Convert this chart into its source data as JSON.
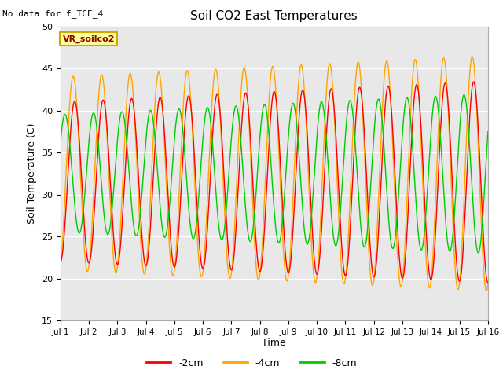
{
  "title": "Soil CO2 East Temperatures",
  "no_data_text": "No data for f_TCE_4",
  "legend_box_text": "VR_soilco2",
  "ylabel": "Soil Temperature (C)",
  "xlabel": "Time",
  "ylim": [
    15,
    50
  ],
  "xlim": [
    0,
    15
  ],
  "yticks": [
    15,
    20,
    25,
    30,
    35,
    40,
    45,
    50
  ],
  "xtick_labels": [
    "Jul 1",
    "Jul 2",
    "Jul 3",
    "Jul 4",
    "Jul 5",
    "Jul 6",
    "Jul 7",
    "Jul 8",
    "Jul 9",
    "Jul 10",
    "Jul 11",
    "Jul 12",
    "Jul 13",
    "Jul 14",
    "Jul 15",
    "Jul 16"
  ],
  "color_2cm": "#ff0000",
  "color_4cm": "#ffa500",
  "color_8cm": "#00cc00",
  "plot_bg_color": "#e8e8e8",
  "label_2cm": "-2cm",
  "label_4cm": "-4cm",
  "label_8cm": "-8cm",
  "n_days": 15,
  "samples_per_day": 96,
  "amp_2cm_start": 9.5,
  "amp_2cm_end": 12.0,
  "amp_4cm_start": 11.5,
  "amp_4cm_end": 14.0,
  "amp_8cm_start": 7.0,
  "amp_8cm_end": 9.5,
  "mean_2cm": 31.5,
  "mean_4cm": 32.5,
  "mean_8cm": 32.5,
  "phase_2cm": -1.5707963,
  "phase_4cm": -1.25,
  "phase_8cm": 0.55
}
